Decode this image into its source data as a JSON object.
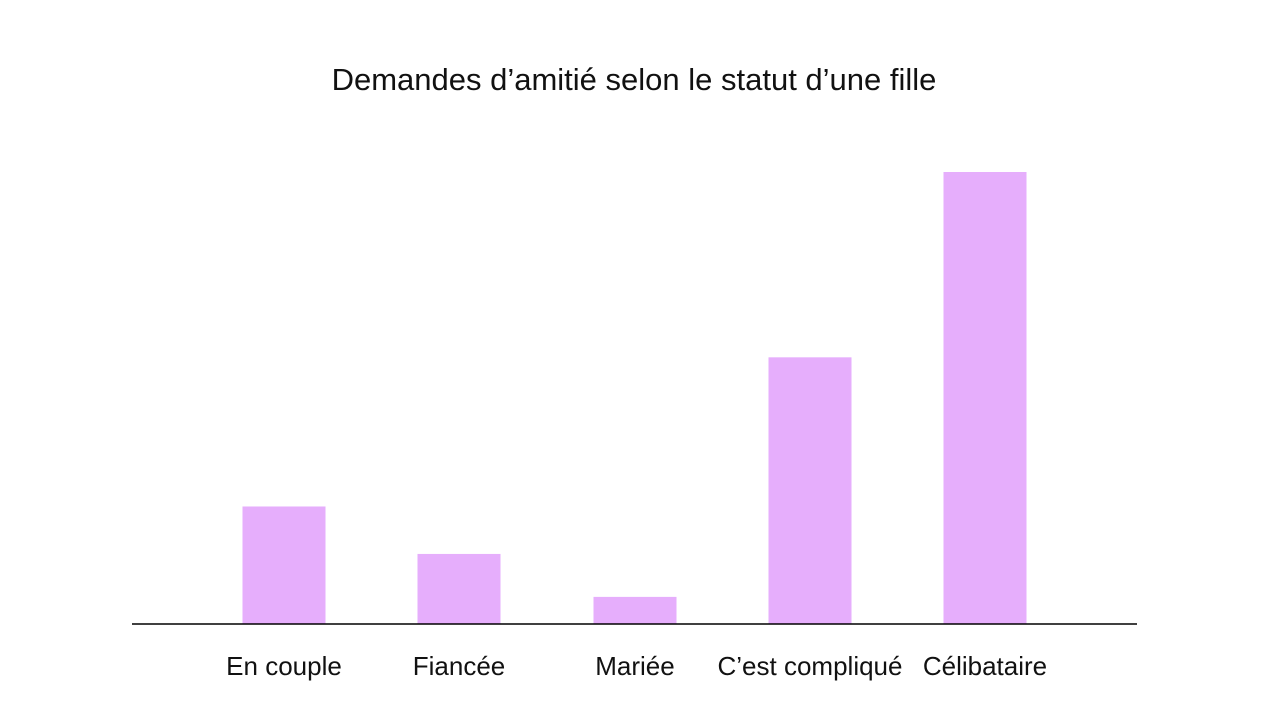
{
  "chart_data": {
    "type": "bar",
    "title": "Demandes d’amitié selon le statut d’une fille",
    "categories": [
      "En couple",
      "Fiancée",
      "Mariée",
      "C’est compliqué",
      "Célibataire"
    ],
    "values": [
      26,
      15.5,
      6,
      59,
      100
    ],
    "ylim": [
      0,
      100
    ],
    "grid": false,
    "legend": "none",
    "bar_color": "#e6aefc",
    "axis_color": "#000000"
  }
}
